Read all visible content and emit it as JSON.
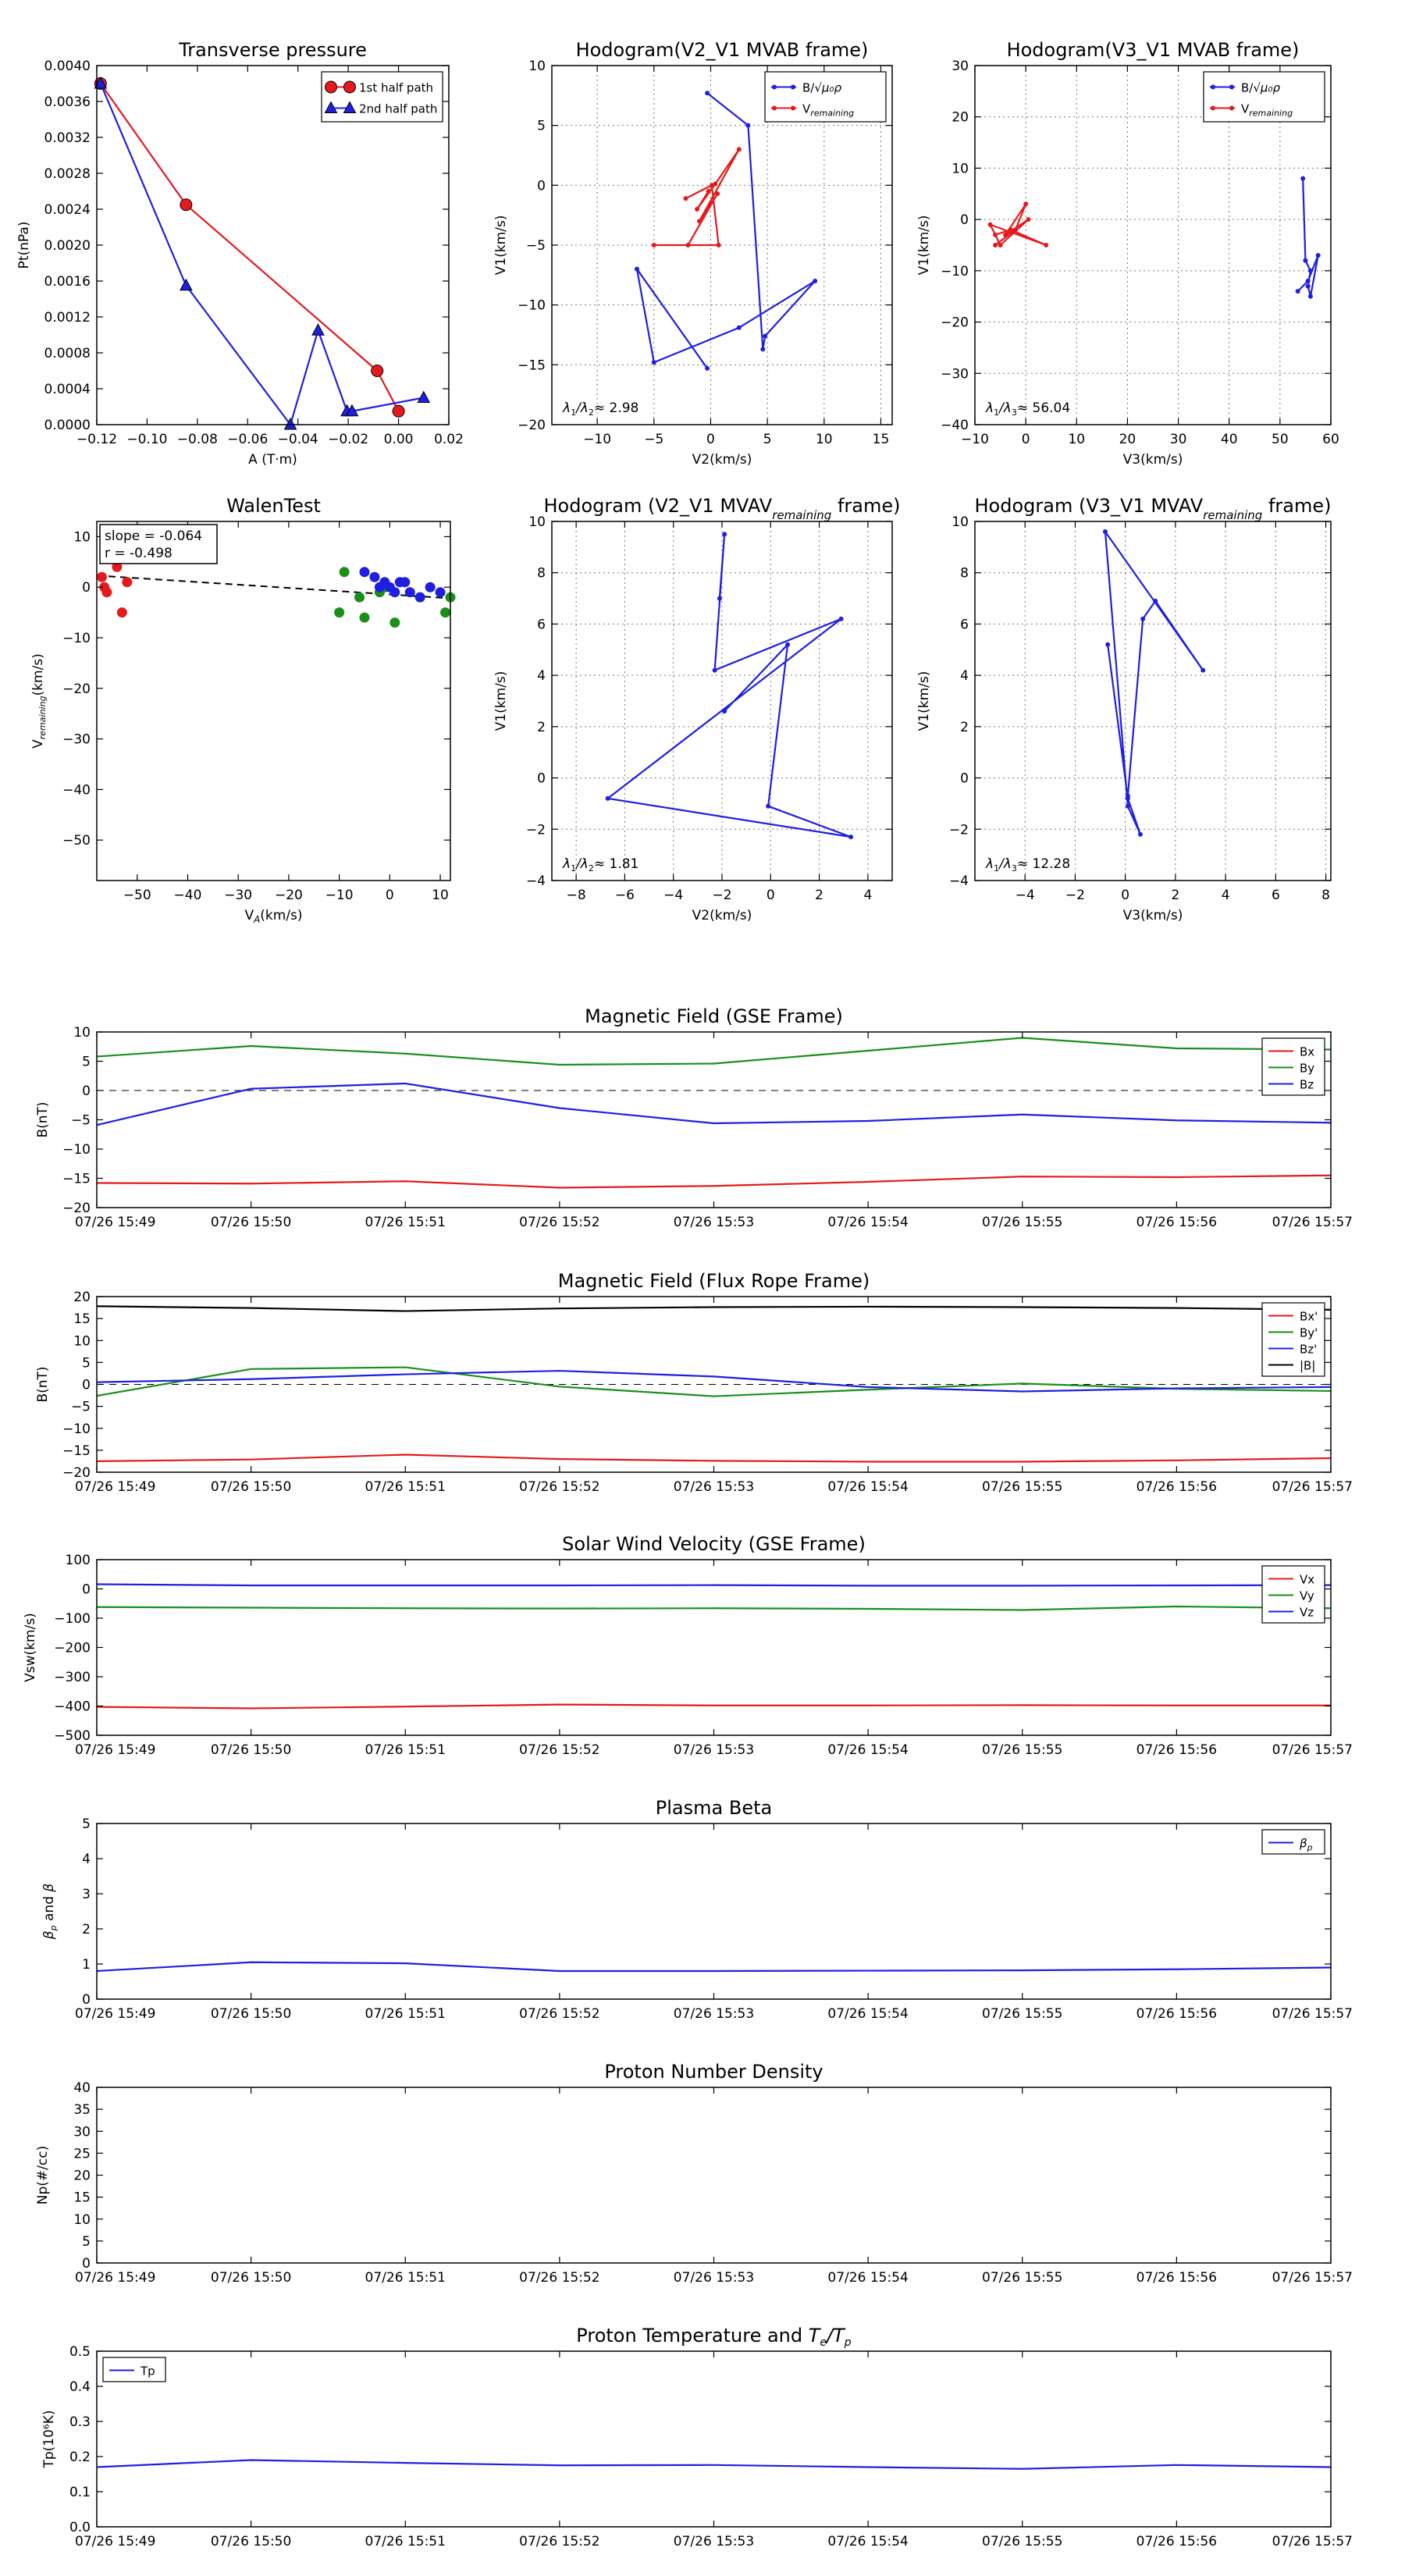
{
  "colors": {
    "red": "#e41a1c",
    "green": "#1a8f1a",
    "blue": "#1f1fe0",
    "black": "#000000",
    "grid": "#888888"
  },
  "time_ticks": [
    "07/26 15:49",
    "07/26 15:50",
    "07/26 15:51",
    "07/26 15:52",
    "07/26 15:53",
    "07/26 15:54",
    "07/26 15:55",
    "07/26 15:56",
    "07/26 15:57"
  ],
  "chart_data": [
    {
      "id": "transverse",
      "type": "line",
      "title": "Transverse pressure",
      "xlabel": "A (T·m)",
      "ylabel": "Pt(nPa)",
      "xlim": [
        -0.12,
        0.02
      ],
      "ylim": [
        0,
        0.004
      ],
      "xticks": [
        -0.12,
        -0.1,
        -0.08,
        -0.06,
        -0.04,
        -0.02,
        0.0,
        0.02
      ],
      "xtick_labels": [
        "−0.12",
        "−0.10",
        "−0.08",
        "−0.06",
        "−0.04",
        "−0.02",
        "0.00",
        "0.02"
      ],
      "yticks": [
        0,
        0.0004,
        0.0008,
        0.0012,
        0.0016,
        0.002,
        0.0024,
        0.0028,
        0.0032,
        0.0036,
        0.004
      ],
      "ytick_labels": [
        "0.0000",
        "0.0004",
        "0.0008",
        "0.0012",
        "0.0016",
        "0.0020",
        "0.0024",
        "0.0028",
        "0.0032",
        "0.0036",
        "0.0040"
      ],
      "grid": false,
      "legend_position": "top-right",
      "series": [
        {
          "name": "1st half path",
          "color": "red",
          "marker": "circle",
          "x": [
            -0.1185,
            -0.0845,
            -0.0085,
            0.0
          ],
          "y": [
            0.0038,
            0.00245,
            0.0006,
            0.00015
          ]
        },
        {
          "name": "2nd half path",
          "color": "blue",
          "marker": "triangle",
          "x": [
            -0.1185,
            -0.0845,
            -0.043,
            -0.032,
            -0.0205,
            -0.0185,
            0.01
          ],
          "y": [
            0.0038,
            0.00155,
            0.0,
            0.00105,
            0.00015,
            0.00015,
            0.0003
          ]
        }
      ]
    },
    {
      "id": "hodo_v2v1_mvab",
      "type": "line",
      "title": "Hodogram(V2_V1 MVAB frame)",
      "xlabel": "V2(km/s)",
      "ylabel": "V1(km/s)",
      "xlim": [
        -14,
        16
      ],
      "ylim": [
        -20,
        10
      ],
      "xticks": [
        -10,
        -5,
        0,
        5,
        10,
        15
      ],
      "xtick_labels": [
        "−10",
        "−5",
        "0",
        "5",
        "10",
        "15"
      ],
      "yticks": [
        -20,
        -15,
        -10,
        -5,
        0,
        5,
        10
      ],
      "ytick_labels": [
        "−20",
        "−15",
        "−10",
        "−5",
        "0",
        "5",
        "10"
      ],
      "grid": true,
      "legend_position": "top-right",
      "annotation": "λ1/λ2≈ 2.98",
      "series": [
        {
          "name": "B/√μ0ρ",
          "color": "blue",
          "marker": "dot",
          "x": [
            -0.3,
            -6.5,
            -5,
            2.5,
            9.2,
            4.8,
            4.6,
            3.3,
            -0.3
          ],
          "y": [
            -15.3,
            -7,
            -14.8,
            -11.9,
            -8,
            -12.6,
            -13.7,
            5,
            7.7
          ]
        },
        {
          "name": "V_remaining",
          "color": "red",
          "marker": "dot",
          "x": [
            -2.2,
            0.1,
            0.7,
            -5,
            -2,
            0.6,
            -1,
            2.5,
            0.4,
            -1.2,
            -0.2
          ],
          "y": [
            -1.1,
            0,
            -5,
            -5,
            -5,
            -0.7,
            -3,
            3,
            0.1,
            -2,
            -0.5
          ]
        }
      ]
    },
    {
      "id": "hodo_v3v1_mvab",
      "type": "line",
      "title": "Hodogram(V3_V1 MVAB frame)",
      "xlabel": "V3(km/s)",
      "ylabel": "V1(km/s)",
      "xlim": [
        -10,
        60
      ],
      "ylim": [
        -40,
        30
      ],
      "xticks": [
        -10,
        0,
        10,
        20,
        30,
        40,
        50,
        60
      ],
      "xtick_labels": [
        "−10",
        "0",
        "10",
        "20",
        "30",
        "40",
        "50",
        "60"
      ],
      "yticks": [
        -40,
        -30,
        -20,
        -10,
        0,
        10,
        20,
        30
      ],
      "ytick_labels": [
        "−40",
        "−30",
        "−20",
        "−10",
        "0",
        "10",
        "20",
        "30"
      ],
      "grid": true,
      "legend_position": "top-right",
      "annotation": "λ1/λ3≈ 56.04",
      "series": [
        {
          "name": "B/√μ0ρ",
          "color": "blue",
          "marker": "dot",
          "x": [
            53.5,
            55.5,
            57.5,
            56,
            55.5,
            56,
            55,
            54.5
          ],
          "y": [
            -14,
            -12,
            -7,
            -15,
            -13,
            -10,
            -8,
            8
          ]
        },
        {
          "name": "V_remaining",
          "color": "red",
          "marker": "dot",
          "x": [
            -6,
            -3,
            4,
            -7,
            -5,
            0.5,
            -4,
            0,
            -2,
            -6
          ],
          "y": [
            -3,
            -2,
            -5,
            -1,
            -5,
            0,
            -3,
            3,
            -2,
            -5
          ]
        }
      ]
    },
    {
      "id": "walen",
      "type": "scatter",
      "title": "WalenTest",
      "xlabel": "V_A(km/s)",
      "ylabel": "V_remaining(km/s)",
      "xlim": [
        -58,
        12
      ],
      "ylim": [
        -58,
        13
      ],
      "xticks": [
        -50,
        -40,
        -30,
        -20,
        -10,
        0,
        10
      ],
      "xtick_labels": [
        "−50",
        "−40",
        "−30",
        "−20",
        "−10",
        "0",
        "10"
      ],
      "yticks": [
        -50,
        -40,
        -30,
        -20,
        -10,
        0,
        10
      ],
      "ytick_labels": [
        "−50",
        "−40",
        "−30",
        "−20",
        "−10",
        "0",
        "10"
      ],
      "grid": false,
      "text_box": [
        "slope = -0.064",
        "r = -0.498"
      ],
      "fit_line": {
        "x": [
          -58,
          12
        ],
        "y": [
          2.3,
          -2.2
        ]
      },
      "series": [
        {
          "color": "red",
          "x": [
            -57,
            -56.5,
            -56,
            -54,
            -53,
            -52
          ],
          "y": [
            2,
            0,
            -1,
            4,
            -5,
            1
          ]
        },
        {
          "color": "green",
          "x": [
            -9,
            -10,
            -6,
            -5,
            -2,
            1,
            11,
            12,
            -1
          ],
          "y": [
            3,
            -5,
            -2,
            -6,
            -1,
            -7,
            -5,
            -2,
            0
          ]
        },
        {
          "color": "blue",
          "x": [
            -5,
            -3,
            -1,
            0,
            2,
            4,
            6,
            8,
            10,
            -2,
            1,
            3
          ],
          "y": [
            3,
            2,
            1,
            0,
            1,
            -1,
            -2,
            0,
            -1,
            0,
            -1,
            1
          ]
        }
      ]
    },
    {
      "id": "hodo_v2v1_mvav",
      "type": "line",
      "title": "Hodogram (V2_V1 MVAV_remaining frame)",
      "xlabel": "V2(km/s)",
      "ylabel": "V1(km/s)",
      "xlim": [
        -9,
        5
      ],
      "ylim": [
        -4,
        10
      ],
      "xticks": [
        -8,
        -6,
        -4,
        -2,
        0,
        2,
        4
      ],
      "xtick_labels": [
        "−8",
        "−6",
        "−4",
        "−2",
        "0",
        "2",
        "4"
      ],
      "yticks": [
        -4,
        -2,
        0,
        2,
        4,
        6,
        8,
        10
      ],
      "ytick_labels": [
        "−4",
        "−2",
        "0",
        "2",
        "4",
        "6",
        "8",
        "10"
      ],
      "grid": true,
      "annotation": "λ1/λ2≈ 1.81",
      "series": [
        {
          "color": "blue",
          "marker": "dot",
          "x": [
            -2.1,
            -1.9,
            -2.3,
            2.9,
            -6.7,
            3.3,
            -0.1,
            0.7,
            -1.9
          ],
          "y": [
            7,
            9.5,
            4.2,
            6.2,
            -0.8,
            -2.3,
            -1.1,
            5.2,
            2.6
          ]
        }
      ]
    },
    {
      "id": "hodo_v3v1_mvav",
      "type": "line",
      "title": "Hodogram (V3_V1 MVAV_remaining frame)",
      "xlabel": "V3(km/s)",
      "ylabel": "V1(km/s)",
      "xlim": [
        -6,
        8.2
      ],
      "ylim": [
        -4,
        10
      ],
      "xticks": [
        -4,
        -2,
        0,
        2,
        4,
        6,
        8
      ],
      "xtick_labels": [
        "−4",
        "−2",
        "0",
        "2",
        "4",
        "6",
        "8"
      ],
      "yticks": [
        -4,
        -2,
        0,
        2,
        4,
        6,
        8,
        10
      ],
      "ytick_labels": [
        "−4",
        "−2",
        "0",
        "2",
        "4",
        "6",
        "8",
        "10"
      ],
      "grid": true,
      "annotation": "λ1/λ3≈ 12.28",
      "series": [
        {
          "color": "blue",
          "marker": "dot",
          "x": [
            -0.7,
            0.1,
            0.6,
            0.1,
            -0.8,
            3.1,
            1.2,
            0.7,
            0.1
          ],
          "y": [
            5.2,
            -0.8,
            -2.2,
            -1.1,
            9.6,
            4.2,
            6.9,
            6.2,
            -0.7
          ]
        }
      ]
    },
    {
      "id": "mag_gse",
      "type": "line",
      "title": "Magnetic Field (GSE Frame)",
      "ylabel": "B(nT)",
      "ylim": [
        -20,
        10
      ],
      "yticks": [
        -20,
        -15,
        -10,
        -5,
        0,
        5,
        10
      ],
      "ytick_labels": [
        "−20",
        "−15",
        "−10",
        "−5",
        "0",
        "5",
        "10"
      ],
      "zero_line": true,
      "legend_position": "top-right",
      "series": [
        {
          "name": "Bx",
          "color": "red",
          "values": [
            -15.8,
            -15.9,
            -15.5,
            -16.6,
            -16.3,
            -15.6,
            -14.7,
            -14.8,
            -14.5
          ]
        },
        {
          "name": "By",
          "color": "green",
          "values": [
            5.8,
            7.6,
            6.3,
            4.4,
            4.6,
            6.8,
            9,
            7.2,
            7
          ]
        },
        {
          "name": "Bz",
          "color": "blue",
          "values": [
            -5.9,
            0.3,
            1.2,
            -3,
            -5.6,
            -5.2,
            -4.1,
            -5.1,
            -5.5
          ]
        }
      ]
    },
    {
      "id": "mag_fr",
      "type": "line",
      "title": "Magnetic Field (Flux Rope Frame)",
      "ylabel": "B(nT)",
      "ylim": [
        -20,
        20
      ],
      "yticks": [
        -20,
        -15,
        -10,
        -5,
        0,
        5,
        10,
        15,
        20
      ],
      "ytick_labels": [
        "−20",
        "−15",
        "−10",
        "−5",
        "0",
        "5",
        "10",
        "15",
        "20"
      ],
      "zero_line": true,
      "legend_position": "top-right",
      "series": [
        {
          "name": "Bx'",
          "color": "red",
          "values": [
            -17.5,
            -17.1,
            -16,
            -17,
            -17.4,
            -17.6,
            -17.6,
            -17.3,
            -16.8
          ]
        },
        {
          "name": "By'",
          "color": "green",
          "values": [
            -2.6,
            3.5,
            3.9,
            -0.5,
            -2.7,
            -1.2,
            0.2,
            -1,
            -1.5
          ]
        },
        {
          "name": "Bz'",
          "color": "blue",
          "values": [
            0.5,
            1.2,
            2.3,
            3.1,
            1.8,
            -0.6,
            -1.6,
            -0.9,
            -0.6
          ]
        },
        {
          "name": "|B|",
          "color": "black",
          "values": [
            17.8,
            17.4,
            16.7,
            17.3,
            17.6,
            17.7,
            17.6,
            17.4,
            17
          ]
        }
      ]
    },
    {
      "id": "vsw",
      "type": "line",
      "title": "Solar Wind Velocity (GSE Frame)",
      "ylabel": "Vsw(km/s)",
      "ylim": [
        -500,
        100
      ],
      "yticks": [
        -500,
        -400,
        -300,
        -200,
        -100,
        0,
        100
      ],
      "ytick_labels": [
        "−500",
        "−400",
        "−300",
        "−200",
        "−100",
        "0",
        "100"
      ],
      "legend_position": "top-right",
      "series": [
        {
          "name": "Vx",
          "color": "red",
          "values": [
            -403,
            -408,
            -402,
            -395,
            -398,
            -398,
            -397,
            -398,
            -398
          ]
        },
        {
          "name": "Vy",
          "color": "green",
          "values": [
            -62,
            -64,
            -66,
            -67,
            -66,
            -68,
            -72,
            -60,
            -66
          ]
        },
        {
          "name": "Vz",
          "color": "blue",
          "values": [
            16,
            12,
            12,
            12,
            13,
            11,
            11,
            12,
            13
          ]
        }
      ]
    },
    {
      "id": "beta",
      "type": "line",
      "title": "Plasma Beta",
      "ylabel": "βp and β",
      "ylim": [
        0,
        5
      ],
      "yticks": [
        0,
        1,
        2,
        3,
        4,
        5
      ],
      "ytick_labels": [
        "0",
        "1",
        "2",
        "3",
        "4",
        "5"
      ],
      "legend_position": "top-right",
      "series": [
        {
          "name": "βp",
          "color": "blue",
          "values": [
            0.8,
            1.05,
            1.02,
            0.8,
            0.8,
            0.81,
            0.82,
            0.85,
            0.9
          ]
        }
      ]
    },
    {
      "id": "density",
      "type": "line",
      "title": "Proton Number Density",
      "ylabel": "Np(#/cc)",
      "ylim": [
        0,
        40
      ],
      "yticks": [
        0,
        5,
        10,
        15,
        20,
        25,
        30,
        35,
        40
      ],
      "ytick_labels": [
        "0",
        "5",
        "10",
        "15",
        "20",
        "25",
        "30",
        "35",
        "40"
      ],
      "series": []
    },
    {
      "id": "temp",
      "type": "line",
      "title": "Proton Temperature and Te/Tp",
      "ylabel": "Tp(10⁶K)",
      "ylim": [
        0,
        0.5
      ],
      "yticks": [
        0,
        0.1,
        0.2,
        0.3,
        0.4,
        0.5
      ],
      "ytick_labels": [
        "0.0",
        "0.1",
        "0.2",
        "0.3",
        "0.4",
        "0.5"
      ],
      "legend_position": "top-left",
      "series": [
        {
          "name": "Tp",
          "color": "blue",
          "values": [
            0.17,
            0.19,
            0.182,
            0.175,
            0.176,
            0.17,
            0.165,
            0.176,
            0.17
          ]
        }
      ]
    }
  ]
}
